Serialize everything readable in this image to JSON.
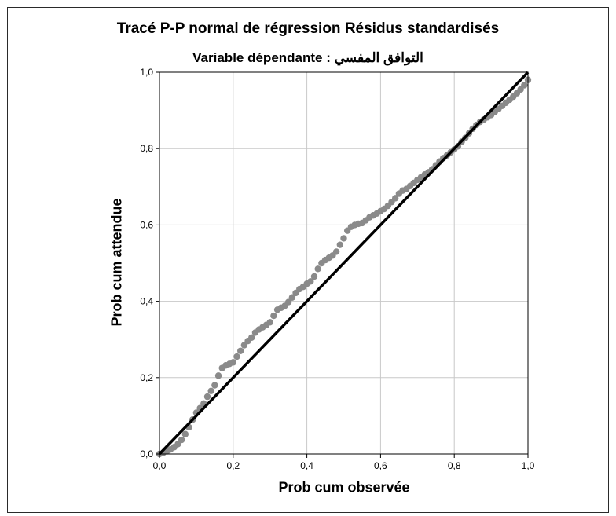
{
  "chart_data": {
    "type": "scatter",
    "title": "Tracé P-P normal de régression Résidus standardisés",
    "subtitle": "Variable dépendante : التوافق المفسي",
    "xlabel": "Prob cum observée",
    "ylabel": "Prob cum attendue",
    "xlim": [
      0.0,
      1.0
    ],
    "ylim": [
      0.0,
      1.0
    ],
    "x_ticks": [
      "0,0",
      "0,2",
      "0,4",
      "0,6",
      "0,8",
      "1,0"
    ],
    "y_ticks": [
      "0,0",
      "0,2",
      "0,4",
      "0,6",
      "0,8",
      "1,0"
    ],
    "grid": true,
    "legend": "none",
    "reference_line": {
      "from": [
        0.0,
        0.0
      ],
      "to": [
        1.0,
        1.0
      ],
      "color": "#000000"
    },
    "series": [
      {
        "color": "#8a8a8a",
        "points": [
          [
            0.0,
            0.0
          ],
          [
            0.01,
            0.003
          ],
          [
            0.02,
            0.007
          ],
          [
            0.03,
            0.012
          ],
          [
            0.04,
            0.018
          ],
          [
            0.05,
            0.026
          ],
          [
            0.06,
            0.037
          ],
          [
            0.07,
            0.052
          ],
          [
            0.08,
            0.07
          ],
          [
            0.09,
            0.09
          ],
          [
            0.1,
            0.108
          ],
          [
            0.11,
            0.12
          ],
          [
            0.12,
            0.132
          ],
          [
            0.13,
            0.15
          ],
          [
            0.14,
            0.165
          ],
          [
            0.15,
            0.18
          ],
          [
            0.16,
            0.205
          ],
          [
            0.17,
            0.225
          ],
          [
            0.18,
            0.232
          ],
          [
            0.19,
            0.236
          ],
          [
            0.2,
            0.24
          ],
          [
            0.21,
            0.255
          ],
          [
            0.22,
            0.27
          ],
          [
            0.23,
            0.285
          ],
          [
            0.24,
            0.296
          ],
          [
            0.25,
            0.305
          ],
          [
            0.26,
            0.318
          ],
          [
            0.27,
            0.326
          ],
          [
            0.28,
            0.332
          ],
          [
            0.29,
            0.338
          ],
          [
            0.3,
            0.345
          ],
          [
            0.31,
            0.362
          ],
          [
            0.32,
            0.378
          ],
          [
            0.33,
            0.383
          ],
          [
            0.34,
            0.388
          ],
          [
            0.35,
            0.398
          ],
          [
            0.36,
            0.41
          ],
          [
            0.37,
            0.422
          ],
          [
            0.38,
            0.432
          ],
          [
            0.39,
            0.438
          ],
          [
            0.4,
            0.446
          ],
          [
            0.41,
            0.452
          ],
          [
            0.42,
            0.465
          ],
          [
            0.43,
            0.485
          ],
          [
            0.44,
            0.5
          ],
          [
            0.45,
            0.508
          ],
          [
            0.46,
            0.514
          ],
          [
            0.47,
            0.52
          ],
          [
            0.48,
            0.53
          ],
          [
            0.49,
            0.548
          ],
          [
            0.5,
            0.565
          ],
          [
            0.51,
            0.585
          ],
          [
            0.52,
            0.595
          ],
          [
            0.53,
            0.6
          ],
          [
            0.54,
            0.603
          ],
          [
            0.55,
            0.605
          ],
          [
            0.56,
            0.612
          ],
          [
            0.57,
            0.62
          ],
          [
            0.58,
            0.625
          ],
          [
            0.59,
            0.63
          ],
          [
            0.6,
            0.636
          ],
          [
            0.61,
            0.642
          ],
          [
            0.62,
            0.65
          ],
          [
            0.63,
            0.66
          ],
          [
            0.64,
            0.67
          ],
          [
            0.65,
            0.682
          ],
          [
            0.66,
            0.69
          ],
          [
            0.67,
            0.694
          ],
          [
            0.68,
            0.702
          ],
          [
            0.69,
            0.71
          ],
          [
            0.7,
            0.718
          ],
          [
            0.71,
            0.725
          ],
          [
            0.72,
            0.732
          ],
          [
            0.73,
            0.738
          ],
          [
            0.74,
            0.746
          ],
          [
            0.75,
            0.756
          ],
          [
            0.76,
            0.766
          ],
          [
            0.77,
            0.775
          ],
          [
            0.78,
            0.782
          ],
          [
            0.79,
            0.79
          ],
          [
            0.8,
            0.798
          ],
          [
            0.81,
            0.806
          ],
          [
            0.82,
            0.818
          ],
          [
            0.83,
            0.828
          ],
          [
            0.84,
            0.84
          ],
          [
            0.85,
            0.852
          ],
          [
            0.86,
            0.862
          ],
          [
            0.87,
            0.87
          ],
          [
            0.88,
            0.876
          ],
          [
            0.89,
            0.882
          ],
          [
            0.9,
            0.888
          ],
          [
            0.91,
            0.896
          ],
          [
            0.92,
            0.904
          ],
          [
            0.93,
            0.912
          ],
          [
            0.94,
            0.92
          ],
          [
            0.95,
            0.928
          ],
          [
            0.96,
            0.936
          ],
          [
            0.97,
            0.945
          ],
          [
            0.98,
            0.955
          ],
          [
            0.99,
            0.966
          ],
          [
            1.0,
            0.98
          ]
        ]
      }
    ]
  }
}
